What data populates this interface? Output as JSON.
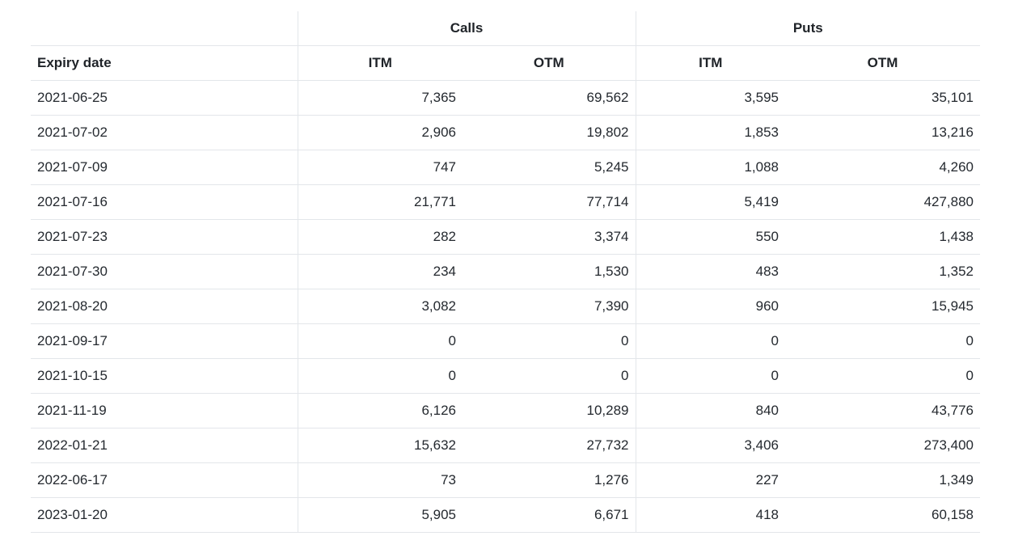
{
  "table": {
    "groups": {
      "calls": "Calls",
      "puts": "Puts"
    },
    "headers": {
      "expiry": "Expiry date",
      "calls_itm": "ITM",
      "calls_otm": "OTM",
      "puts_itm": "ITM",
      "puts_otm": "OTM"
    },
    "rows": [
      {
        "date": "2021-06-25",
        "calls_itm": "7,365",
        "calls_otm": "69,562",
        "puts_itm": "3,595",
        "puts_otm": "35,101"
      },
      {
        "date": "2021-07-02",
        "calls_itm": "2,906",
        "calls_otm": "19,802",
        "puts_itm": "1,853",
        "puts_otm": "13,216"
      },
      {
        "date": "2021-07-09",
        "calls_itm": "747",
        "calls_otm": "5,245",
        "puts_itm": "1,088",
        "puts_otm": "4,260"
      },
      {
        "date": "2021-07-16",
        "calls_itm": "21,771",
        "calls_otm": "77,714",
        "puts_itm": "5,419",
        "puts_otm": "427,880"
      },
      {
        "date": "2021-07-23",
        "calls_itm": "282",
        "calls_otm": "3,374",
        "puts_itm": "550",
        "puts_otm": "1,438"
      },
      {
        "date": "2021-07-30",
        "calls_itm": "234",
        "calls_otm": "1,530",
        "puts_itm": "483",
        "puts_otm": "1,352"
      },
      {
        "date": "2021-08-20",
        "calls_itm": "3,082",
        "calls_otm": "7,390",
        "puts_itm": "960",
        "puts_otm": "15,945"
      },
      {
        "date": "2021-09-17",
        "calls_itm": "0",
        "calls_otm": "0",
        "puts_itm": "0",
        "puts_otm": "0"
      },
      {
        "date": "2021-10-15",
        "calls_itm": "0",
        "calls_otm": "0",
        "puts_itm": "0",
        "puts_otm": "0"
      },
      {
        "date": "2021-11-19",
        "calls_itm": "6,126",
        "calls_otm": "10,289",
        "puts_itm": "840",
        "puts_otm": "43,776"
      },
      {
        "date": "2022-01-21",
        "calls_itm": "15,632",
        "calls_otm": "27,732",
        "puts_itm": "3,406",
        "puts_otm": "273,400"
      },
      {
        "date": "2022-06-17",
        "calls_itm": "73",
        "calls_otm": "1,276",
        "puts_itm": "227",
        "puts_otm": "1,349"
      },
      {
        "date": "2023-01-20",
        "calls_itm": "5,905",
        "calls_otm": "6,671",
        "puts_itm": "418",
        "puts_otm": "60,158"
      }
    ]
  }
}
